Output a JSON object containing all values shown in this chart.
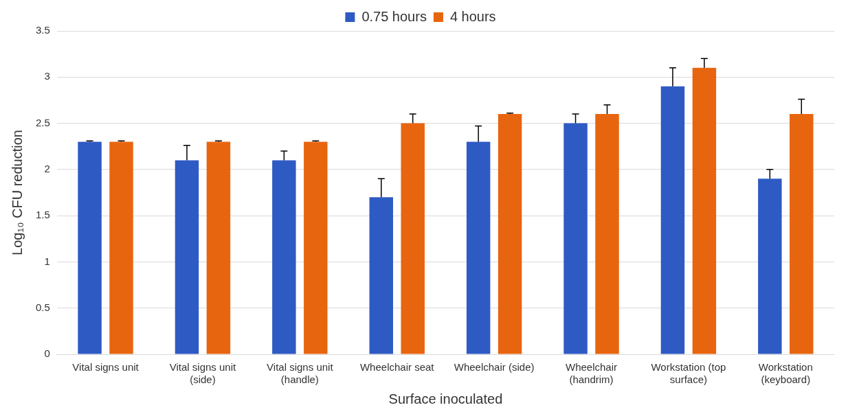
{
  "chart_data": {
    "type": "bar",
    "xlabel": "Surface inoculated",
    "ylabel": "Log₁₀ CFU reduction",
    "categories": [
      "Vital signs unit",
      "Vital signs unit (side)",
      "Vital signs unit (handle)",
      "Wheelchair seat",
      "Wheelchair (side)",
      "Wheelchair (handrim)",
      "Workstation (top surface)",
      "Workstation (keyboard)"
    ],
    "series": [
      {
        "name": "0.75 hours",
        "color": "#2e5ac4",
        "values": [
          2.3,
          2.1,
          2.1,
          1.7,
          2.3,
          2.5,
          2.9,
          1.9
        ],
        "errors": [
          [
            2.3,
            2.31
          ],
          [
            2.1,
            2.26
          ],
          [
            2.1,
            2.2
          ],
          [
            1.7,
            1.9
          ],
          [
            2.3,
            2.47
          ],
          [
            2.5,
            2.6
          ],
          [
            2.9,
            3.1
          ],
          [
            1.9,
            2.0
          ]
        ]
      },
      {
        "name": "4 hours",
        "color": "#e8650f",
        "values": [
          2.3,
          2.3,
          2.3,
          2.5,
          2.6,
          2.6,
          3.1,
          2.6
        ],
        "errors": [
          [
            2.3,
            2.31
          ],
          [
            2.3,
            2.31
          ],
          [
            2.3,
            2.31
          ],
          [
            2.5,
            2.6
          ],
          [
            2.6,
            2.61
          ],
          [
            2.6,
            2.7
          ],
          [
            3.1,
            3.2
          ],
          [
            2.6,
            2.76
          ]
        ]
      }
    ],
    "ylim": [
      0,
      3.5
    ],
    "yticks": [
      0,
      0.5,
      1,
      1.5,
      2,
      2.5,
      3,
      3.5
    ],
    "grid": "y",
    "legend": "top"
  }
}
